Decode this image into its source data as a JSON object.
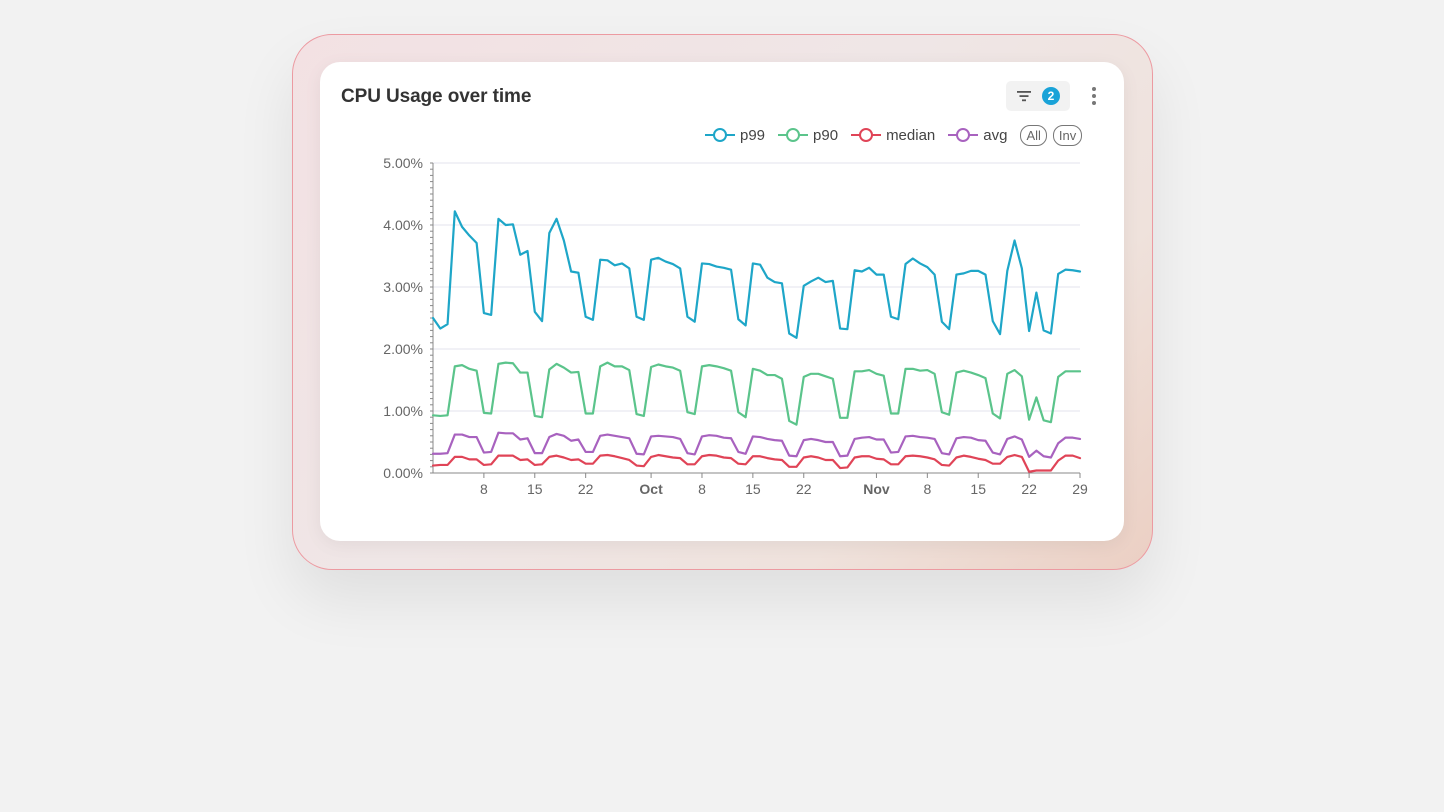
{
  "card": {
    "title": "CPU Usage over time"
  },
  "toolbar": {
    "filter_count": "2"
  },
  "legend": {
    "items": [
      {
        "label": "p99",
        "color": "#1ea6c8"
      },
      {
        "label": "p90",
        "color": "#5bc48b"
      },
      {
        "label": "median",
        "color": "#e04457"
      },
      {
        "label": "avg",
        "color": "#a862bf"
      }
    ],
    "all_label": "All",
    "inv_label": "Inv"
  },
  "chart_data": {
    "type": "line",
    "title": "CPU Usage over time",
    "x": [
      0,
      1,
      2,
      3,
      4,
      5,
      6,
      7,
      8,
      9,
      10,
      11,
      12,
      13,
      14,
      15,
      16,
      17,
      18,
      19,
      20,
      21,
      22,
      23,
      24,
      25,
      26,
      27,
      28,
      29,
      30,
      31,
      32,
      33,
      34,
      35,
      36,
      37,
      38,
      39,
      40,
      41,
      42,
      43,
      44,
      45,
      46,
      47,
      48,
      49,
      50,
      51,
      52,
      53,
      54,
      55,
      56,
      57,
      58,
      59,
      60,
      61,
      62,
      63,
      64,
      65,
      66,
      67,
      68,
      69,
      70,
      71,
      72,
      73,
      74,
      75,
      76,
      77,
      78,
      79,
      80,
      81,
      82,
      83,
      84,
      85,
      86,
      87,
      88,
      89
    ],
    "x_start_date": "2024-09-01",
    "x_ticks": [
      {
        "day": 7,
        "label": "8",
        "bold": false
      },
      {
        "day": 14,
        "label": "15",
        "bold": false
      },
      {
        "day": 21,
        "label": "22",
        "bold": false
      },
      {
        "day": 30,
        "label": "Oct",
        "bold": true
      },
      {
        "day": 37,
        "label": "8",
        "bold": false
      },
      {
        "day": 44,
        "label": "15",
        "bold": false
      },
      {
        "day": 51,
        "label": "22",
        "bold": false
      },
      {
        "day": 61,
        "label": "Nov",
        "bold": true
      },
      {
        "day": 68,
        "label": "8",
        "bold": false
      },
      {
        "day": 75,
        "label": "15",
        "bold": false
      },
      {
        "day": 82,
        "label": "22",
        "bold": false
      },
      {
        "day": 89,
        "label": "29",
        "bold": false
      }
    ],
    "ylim": [
      0,
      5
    ],
    "y_ticks": [
      "0.00%",
      "1.00%",
      "2.00%",
      "3.00%",
      "4.00%",
      "5.00%"
    ],
    "series": [
      {
        "name": "p99",
        "color": "#1ea6c8",
        "values": [
          2.5,
          2.33,
          2.4,
          4.22,
          3.97,
          3.83,
          3.71,
          2.58,
          2.55,
          4.1,
          4.0,
          4.01,
          3.52,
          3.58,
          2.6,
          2.45,
          3.87,
          4.1,
          3.75,
          3.25,
          3.23,
          2.52,
          2.47,
          3.44,
          3.43,
          3.35,
          3.38,
          3.3,
          2.52,
          2.47,
          3.44,
          3.47,
          3.41,
          3.37,
          3.3,
          2.52,
          2.44,
          3.38,
          3.37,
          3.33,
          3.31,
          3.28,
          2.48,
          2.38,
          3.38,
          3.36,
          3.15,
          3.08,
          3.06,
          2.25,
          2.18,
          3.02,
          3.09,
          3.15,
          3.08,
          3.1,
          2.33,
          2.32,
          3.27,
          3.25,
          3.31,
          3.2,
          3.2,
          2.52,
          2.48,
          3.37,
          3.46,
          3.38,
          3.32,
          3.2,
          2.44,
          2.32,
          3.2,
          3.22,
          3.26,
          3.26,
          3.2,
          2.45,
          2.24,
          3.26,
          3.75,
          3.3,
          2.29,
          2.91,
          2.3,
          2.25,
          3.21,
          3.28,
          3.27,
          3.25
        ]
      },
      {
        "name": "p90",
        "color": "#5bc48b",
        "values": [
          0.93,
          0.92,
          0.93,
          1.72,
          1.74,
          1.68,
          1.65,
          0.97,
          0.96,
          1.76,
          1.78,
          1.77,
          1.62,
          1.62,
          0.92,
          0.9,
          1.67,
          1.76,
          1.7,
          1.62,
          1.63,
          0.96,
          0.96,
          1.72,
          1.78,
          1.72,
          1.72,
          1.66,
          0.95,
          0.92,
          1.71,
          1.75,
          1.72,
          1.7,
          1.65,
          0.98,
          0.95,
          1.72,
          1.74,
          1.72,
          1.69,
          1.65,
          0.98,
          0.9,
          1.68,
          1.65,
          1.58,
          1.58,
          1.52,
          0.84,
          0.78,
          1.55,
          1.6,
          1.6,
          1.56,
          1.52,
          0.89,
          0.89,
          1.64,
          1.64,
          1.66,
          1.6,
          1.57,
          0.96,
          0.96,
          1.68,
          1.68,
          1.65,
          1.66,
          1.6,
          0.98,
          0.94,
          1.62,
          1.65,
          1.62,
          1.58,
          1.53,
          0.96,
          0.88,
          1.6,
          1.66,
          1.56,
          0.86,
          1.22,
          0.85,
          0.82,
          1.55,
          1.64,
          1.64,
          1.64
        ]
      },
      {
        "name": "median",
        "color": "#e04457",
        "values": [
          0.12,
          0.13,
          0.13,
          0.26,
          0.26,
          0.22,
          0.22,
          0.13,
          0.14,
          0.28,
          0.28,
          0.28,
          0.21,
          0.22,
          0.13,
          0.14,
          0.26,
          0.28,
          0.25,
          0.21,
          0.22,
          0.15,
          0.15,
          0.28,
          0.29,
          0.27,
          0.24,
          0.21,
          0.12,
          0.11,
          0.26,
          0.29,
          0.27,
          0.25,
          0.24,
          0.14,
          0.14,
          0.27,
          0.29,
          0.28,
          0.25,
          0.24,
          0.15,
          0.14,
          0.27,
          0.27,
          0.24,
          0.22,
          0.21,
          0.1,
          0.1,
          0.25,
          0.27,
          0.25,
          0.21,
          0.21,
          0.08,
          0.09,
          0.25,
          0.27,
          0.27,
          0.23,
          0.22,
          0.14,
          0.14,
          0.27,
          0.28,
          0.27,
          0.25,
          0.22,
          0.13,
          0.12,
          0.25,
          0.28,
          0.26,
          0.23,
          0.21,
          0.15,
          0.15,
          0.26,
          0.29,
          0.26,
          0.02,
          0.04,
          0.04,
          0.04,
          0.2,
          0.28,
          0.28,
          0.24
        ]
      },
      {
        "name": "avg",
        "color": "#a862bf",
        "values": [
          0.31,
          0.31,
          0.32,
          0.62,
          0.62,
          0.58,
          0.58,
          0.33,
          0.34,
          0.65,
          0.64,
          0.64,
          0.54,
          0.56,
          0.32,
          0.32,
          0.58,
          0.63,
          0.6,
          0.52,
          0.54,
          0.34,
          0.34,
          0.6,
          0.62,
          0.6,
          0.58,
          0.56,
          0.31,
          0.3,
          0.59,
          0.6,
          0.59,
          0.58,
          0.55,
          0.32,
          0.3,
          0.59,
          0.61,
          0.6,
          0.57,
          0.56,
          0.34,
          0.31,
          0.59,
          0.58,
          0.55,
          0.53,
          0.52,
          0.28,
          0.27,
          0.53,
          0.55,
          0.53,
          0.5,
          0.5,
          0.27,
          0.28,
          0.55,
          0.57,
          0.58,
          0.54,
          0.54,
          0.33,
          0.34,
          0.59,
          0.6,
          0.58,
          0.57,
          0.55,
          0.32,
          0.3,
          0.56,
          0.58,
          0.57,
          0.53,
          0.52,
          0.33,
          0.3,
          0.55,
          0.59,
          0.54,
          0.26,
          0.36,
          0.27,
          0.25,
          0.48,
          0.57,
          0.57,
          0.55
        ]
      }
    ],
    "grid": true,
    "legend_position": "top-right"
  }
}
